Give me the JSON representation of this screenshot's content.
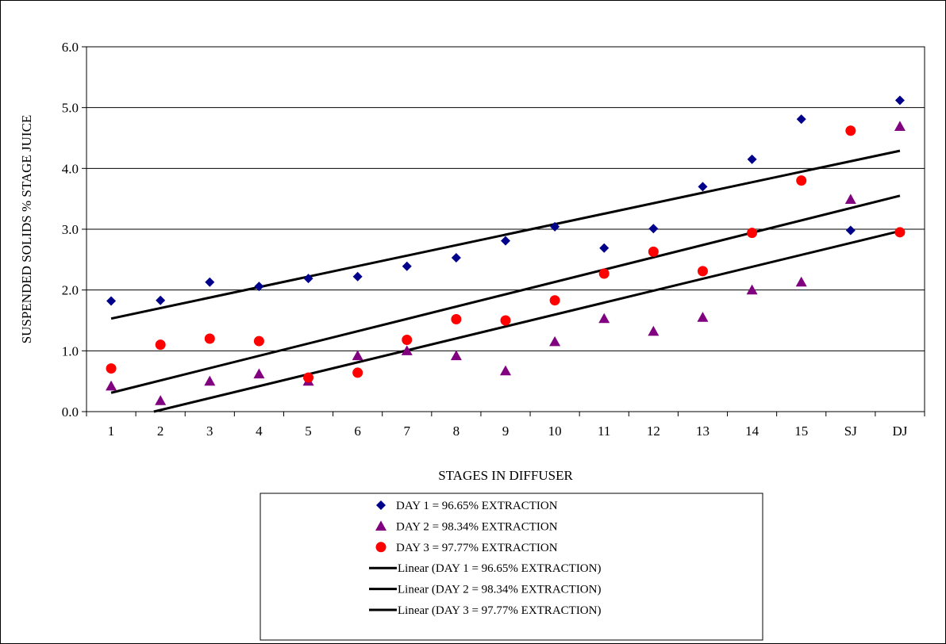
{
  "chart_data": {
    "type": "scatter",
    "xlabel": "STAGES IN DIFFUSER",
    "ylabel": "SUSPENDED SOLIDS % STAGE JUICE",
    "categories": [
      "1",
      "2",
      "3",
      "4",
      "5",
      "6",
      "7",
      "8",
      "9",
      "10",
      "11",
      "12",
      "13",
      "14",
      "15",
      "SJ",
      "DJ"
    ],
    "ylim": [
      0,
      6
    ],
    "yticks": [
      "0.0",
      "1.0",
      "2.0",
      "3.0",
      "4.0",
      "5.0",
      "6.0"
    ],
    "grid": "horizontal",
    "legend_position": "bottom",
    "series": [
      {
        "name": "DAY 1 = 96.65% EXTRACTION",
        "marker": "diamond",
        "color": "#00008b",
        "values": [
          1.82,
          1.83,
          2.13,
          2.06,
          2.19,
          2.22,
          2.39,
          2.53,
          2.81,
          3.04,
          2.69,
          3.01,
          3.7,
          4.15,
          4.81,
          2.98,
          5.12
        ]
      },
      {
        "name": "DAY 2 = 98.34% EXTRACTION",
        "marker": "triangle",
        "color": "#800080",
        "values": [
          0.42,
          0.18,
          0.5,
          0.62,
          0.5,
          0.92,
          1.0,
          0.92,
          0.67,
          1.15,
          1.53,
          1.32,
          1.55,
          2.0,
          2.13,
          3.49,
          4.69
        ]
      },
      {
        "name": "DAY 3 = 97.77% EXTRACTION",
        "marker": "circle",
        "color": "#ff0000",
        "values": [
          0.71,
          1.1,
          1.2,
          1.16,
          0.56,
          0.64,
          1.18,
          1.52,
          1.5,
          1.83,
          2.27,
          2.63,
          2.31,
          2.94,
          3.8,
          4.62,
          2.95
        ]
      }
    ],
    "trendlines": [
      {
        "name": "Linear (DAY 1 = 96.65% EXTRACTION)",
        "color": "#000000",
        "start": 1.53,
        "end": 4.29
      },
      {
        "name": "Linear (DAY 2 = 98.34% EXTRACTION)",
        "color": "#000000",
        "start": -0.17,
        "end": 2.97
      },
      {
        "name": "Linear (DAY 3 = 97.77% EXTRACTION)",
        "color": "#000000",
        "start": 0.31,
        "end": 3.55
      }
    ]
  }
}
